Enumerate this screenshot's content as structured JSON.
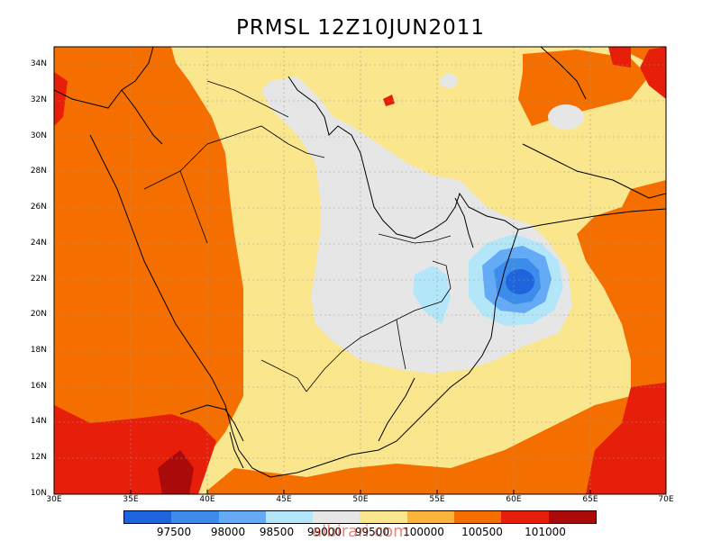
{
  "title": "PRMSL 12Z10JUN2011",
  "map": {
    "lat_labels": [
      "10N",
      "12N",
      "14N",
      "16N",
      "18N",
      "20N",
      "22N",
      "24N",
      "26N",
      "28N",
      "30N",
      "32N",
      "34N"
    ],
    "lon_labels": [
      "30E",
      "35E",
      "40E",
      "45E",
      "50E",
      "55E",
      "60E",
      "65E",
      "70E"
    ],
    "lon_range": [
      30,
      70
    ],
    "lat_range": [
      10,
      35
    ],
    "grid": true,
    "grid_style": "dotted"
  },
  "colorbar": {
    "colors": [
      "#1e64dc",
      "#3c8ceb",
      "#64aaf5",
      "#b4e6fa",
      "#e6e6e6",
      "#fae68c",
      "#fab43c",
      "#f56e00",
      "#e61e0a",
      "#aa0a0a"
    ],
    "labels": [
      "97500",
      "98000",
      "98500",
      "99000",
      "99500",
      "100000",
      "100500",
      "101000"
    ]
  },
  "watermark": "albirari.com"
}
